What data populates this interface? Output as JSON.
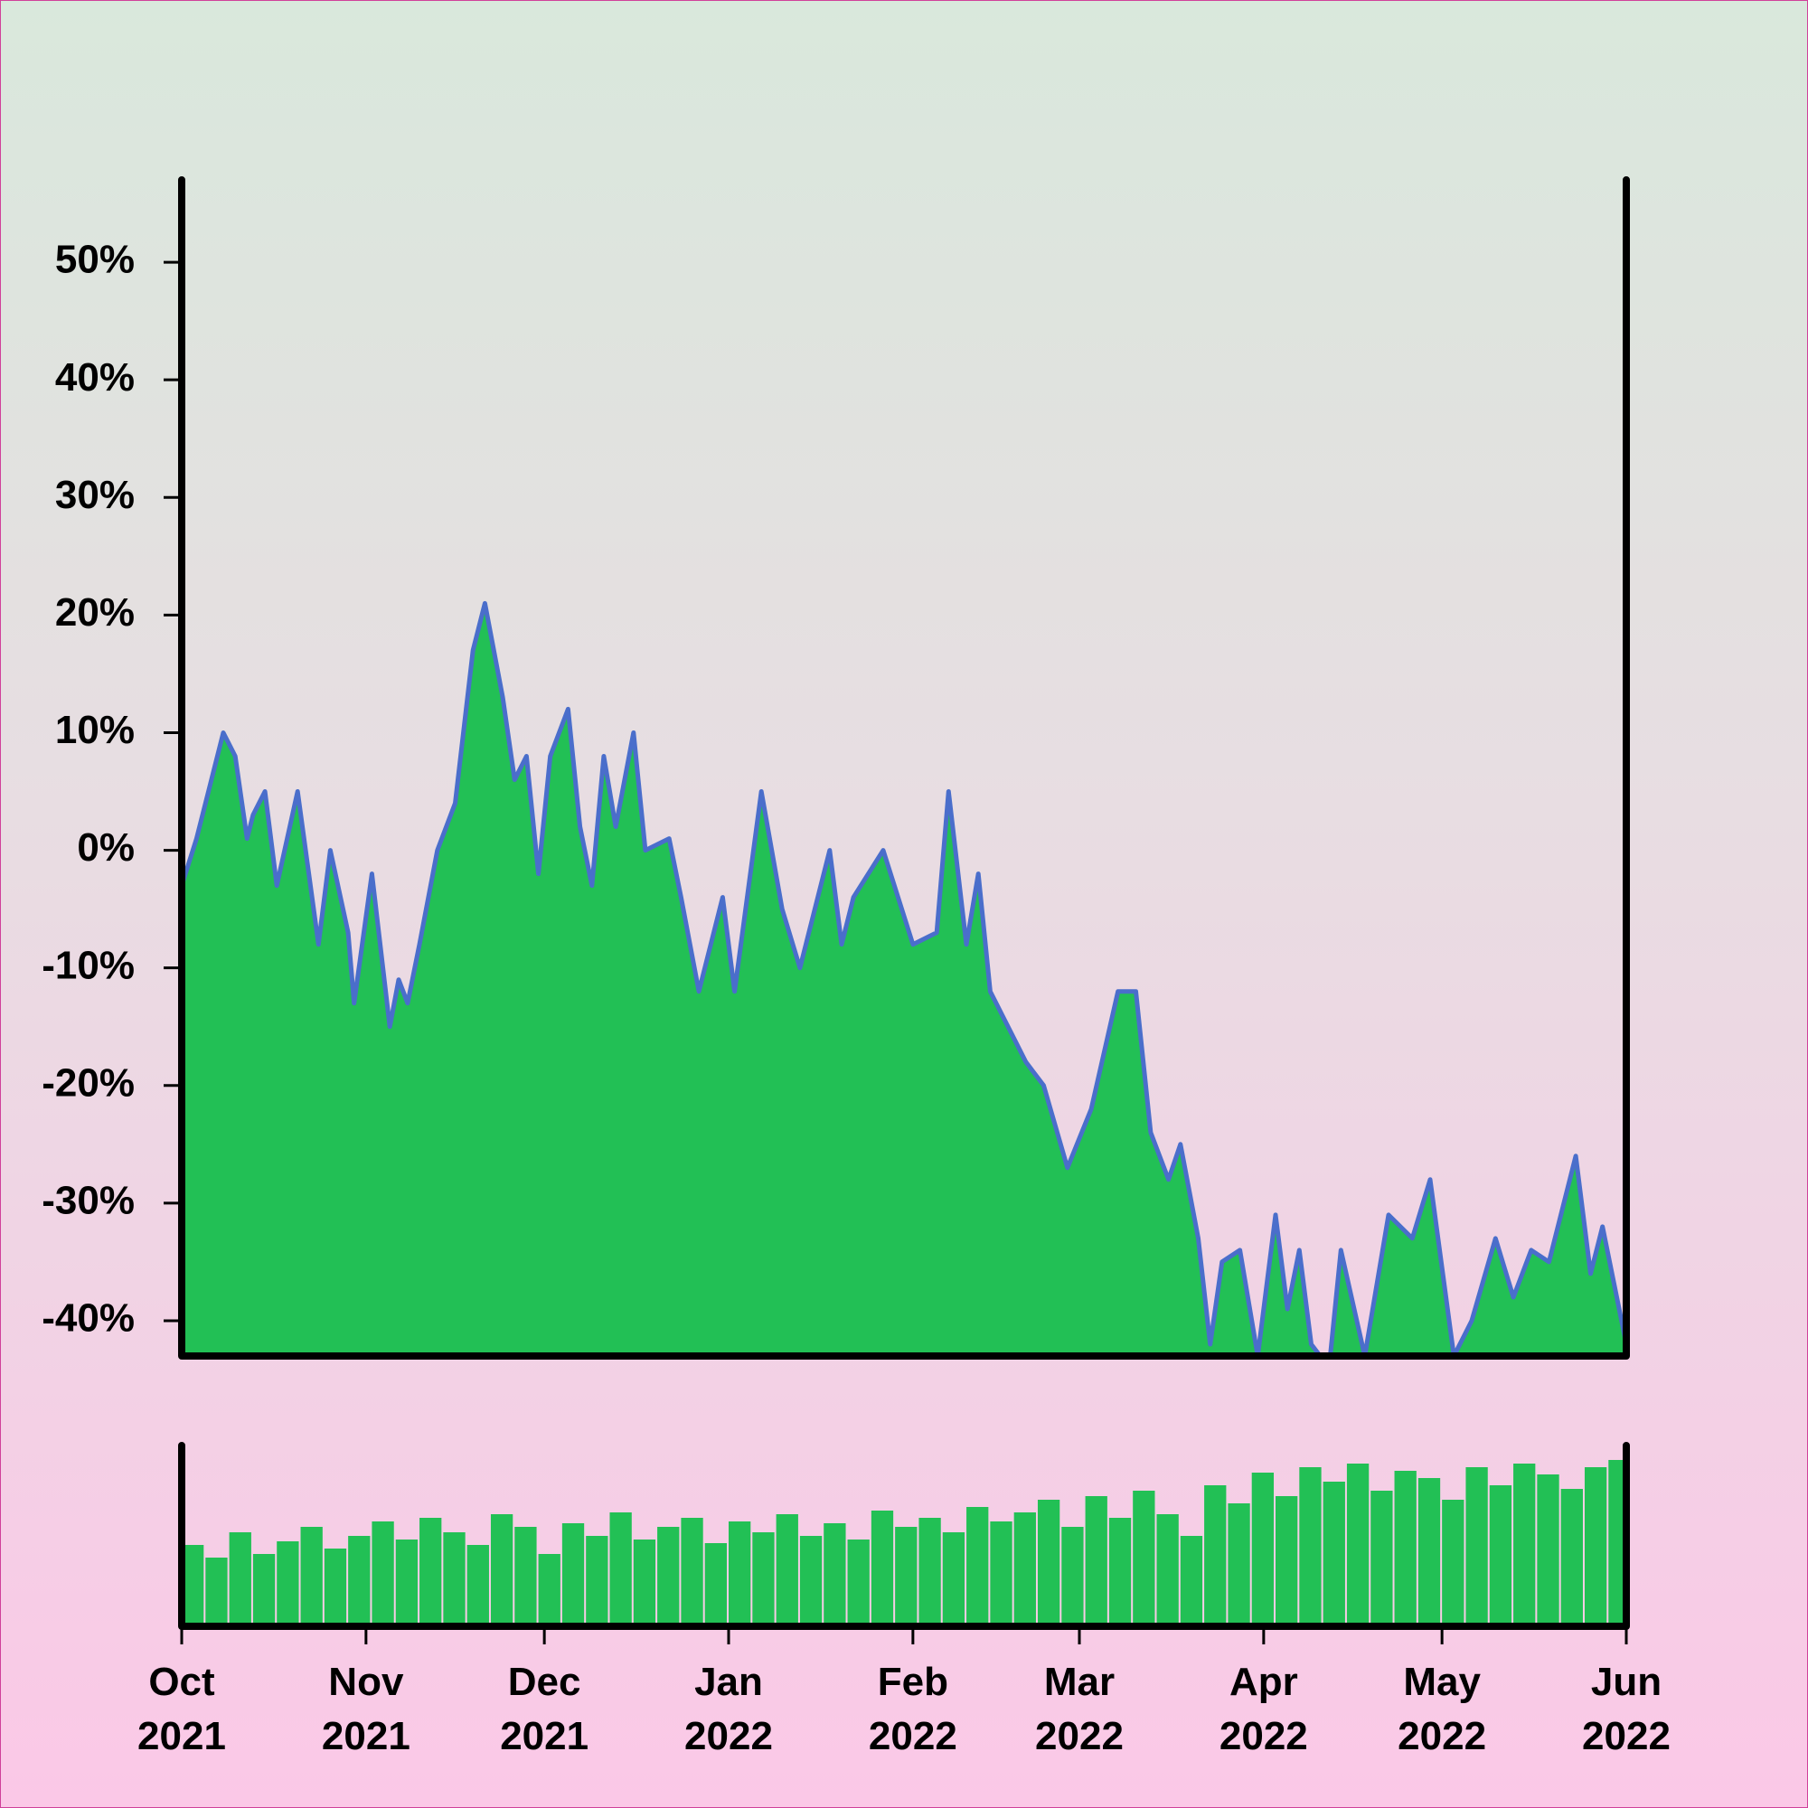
{
  "chart_data": [
    {
      "type": "area",
      "color": "#22c055",
      "line_color": "#4a6ecb",
      "x": [
        0,
        2.5,
        4.5,
        7,
        9,
        11,
        12,
        14,
        16,
        19.5,
        23,
        25,
        28,
        29,
        32,
        35,
        36.5,
        38,
        40,
        43,
        46,
        49,
        51,
        54,
        56,
        58,
        60,
        62,
        65,
        67,
        69,
        71,
        73,
        76,
        78,
        82,
        84,
        87,
        91,
        93,
        97.5,
        101,
        104,
        109,
        111,
        113,
        118,
        123,
        127,
        129,
        132,
        134,
        136,
        139,
        142,
        145,
        149,
        153,
        157.5,
        160.5,
        163,
        166,
        168,
        171,
        173,
        175,
        178,
        181,
        184,
        186,
        188,
        190,
        193,
        195,
        199,
        203,
        207,
        210,
        214,
        217,
        221,
        224,
        227,
        230,
        234.5,
        237,
        239,
        243
      ],
      "values": [
        -3,
        1,
        5,
        10,
        8,
        1,
        3,
        5,
        -3,
        5,
        -8,
        0,
        -7,
        -13,
        -2,
        -15,
        -11,
        -13,
        -8,
        0,
        4,
        17,
        21,
        13,
        6,
        8,
        -2,
        8,
        12,
        2,
        -3,
        8,
        2,
        10,
        0,
        1,
        -4,
        -12,
        -4,
        -12,
        5,
        -5,
        -10,
        0,
        -8,
        -4,
        0,
        -8,
        -7,
        5,
        -8,
        -2,
        -12,
        -15,
        -18,
        -20,
        -27,
        -22,
        -12,
        -12,
        -24,
        -28,
        -25,
        -33,
        -42,
        -35,
        -34,
        -43,
        -31,
        -39,
        -34,
        -42,
        -44,
        -34,
        -43,
        -31,
        -33,
        -28,
        -43,
        -40,
        -33,
        -38,
        -34,
        -35,
        -26,
        -36,
        -32,
        -42
      ],
      "xlim": [
        0,
        243
      ],
      "ylim": [
        -43,
        57
      ],
      "yticks": [
        {
          "value": -40,
          "label": "-40%"
        },
        {
          "value": -30,
          "label": "-30%"
        },
        {
          "value": -20,
          "label": "-20%"
        },
        {
          "value": -10,
          "label": "-10%"
        },
        {
          "value": 0,
          "label": "0%"
        },
        {
          "value": 10,
          "label": "10%"
        },
        {
          "value": 20,
          "label": "20%"
        },
        {
          "value": 30,
          "label": "30%"
        },
        {
          "value": 40,
          "label": "40%"
        },
        {
          "value": 50,
          "label": "50%"
        }
      ]
    },
    {
      "type": "bar",
      "color": "#22c055",
      "x": [
        0,
        4,
        8,
        12,
        16,
        20,
        24,
        28,
        32,
        36,
        40,
        44,
        48,
        52,
        56,
        60,
        64,
        68,
        72,
        76,
        80,
        84,
        88,
        92,
        96,
        100,
        104,
        108,
        112,
        116,
        120,
        124,
        128,
        132,
        136,
        140,
        144,
        148,
        152,
        156,
        160,
        164,
        168,
        172,
        176,
        180,
        184,
        188,
        192,
        196,
        200,
        204,
        208,
        212,
        216,
        220,
        224,
        228,
        232,
        236,
        240
      ],
      "values": [
        45,
        38,
        52,
        40,
        47,
        55,
        43,
        50,
        58,
        48,
        60,
        52,
        45,
        62,
        55,
        40,
        57,
        50,
        63,
        48,
        55,
        60,
        46,
        58,
        52,
        62,
        50,
        57,
        48,
        64,
        55,
        60,
        52,
        66,
        58,
        63,
        70,
        55,
        72,
        60,
        75,
        62,
        50,
        78,
        68,
        85,
        72,
        88,
        80,
        90,
        75,
        86,
        82,
        70,
        88,
        78,
        90,
        84,
        76,
        88,
        92
      ],
      "xlim": [
        0,
        243
      ],
      "ylim": [
        0,
        100
      ],
      "xticks": [
        {
          "value": 0,
          "label": "Oct\n2021"
        },
        {
          "value": 31,
          "label": "Nov\n2021"
        },
        {
          "value": 61,
          "label": "Dec\n2021"
        },
        {
          "value": 92,
          "label": "Jan\n2022"
        },
        {
          "value": 123,
          "label": "Feb\n2022"
        },
        {
          "value": 151,
          "label": "Mar\n2022"
        },
        {
          "value": 182,
          "label": "Apr\n2022"
        },
        {
          "value": 212,
          "label": "May\n2022"
        },
        {
          "value": 243,
          "label": "Jun\n2022"
        }
      ]
    }
  ]
}
